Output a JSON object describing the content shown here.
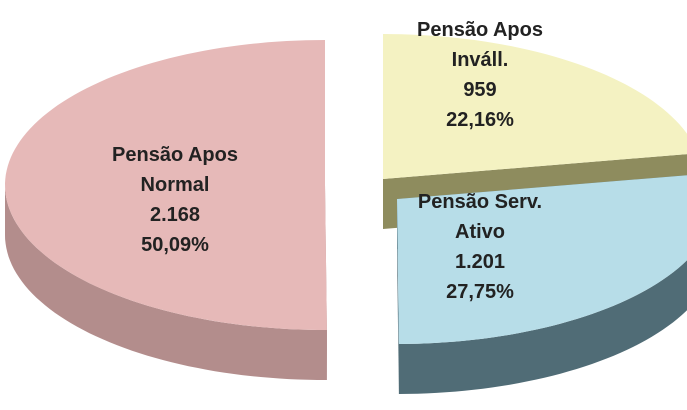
{
  "chart_data": {
    "type": "pie3d",
    "categories": [
      "Pensão Apos Inváll.",
      "Pensão Serv. Ativo",
      "Pensão Apos Normal"
    ],
    "values": [
      959,
      1201,
      2168
    ],
    "value_labels": [
      "959",
      "1.201",
      "2.168"
    ],
    "percent_labels": [
      "22,16%",
      "27,75%",
      "50,09%"
    ],
    "colors": [
      "#f4f2c2",
      "#b7dde8",
      "#e6b9b8"
    ],
    "side_colors": [
      "#8e8c5e",
      "#506c76",
      "#b38d8c"
    ]
  }
}
